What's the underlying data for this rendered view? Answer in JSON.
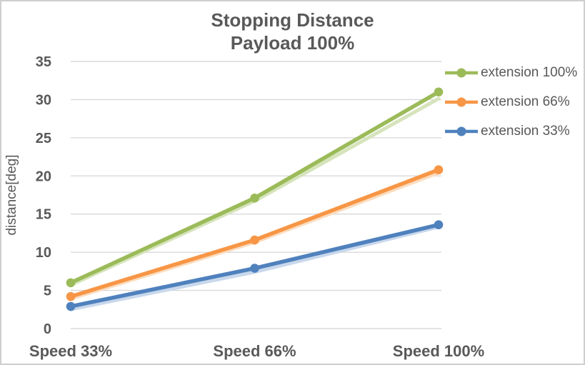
{
  "chart_data": {
    "type": "line",
    "title": "Stopping Distance",
    "subtitle": "Payload 100%",
    "categories": [
      "Speed 33%",
      "Speed 66%",
      "Speed 100%"
    ],
    "series": [
      {
        "name": "extension 100%",
        "values": [
          6.0,
          17.1,
          31.0
        ],
        "second_run_values": [
          5.9,
          16.9,
          30.3
        ],
        "color": "#9BBB59",
        "light_color": "#D6E4BC"
      },
      {
        "name": "extension 66%",
        "values": [
          4.2,
          11.6,
          20.8
        ],
        "second_run_values": [
          4.1,
          11.5,
          20.6
        ],
        "color": "#F79646",
        "light_color": "#FBDDBF"
      },
      {
        "name": "extension 33%",
        "values": [
          2.9,
          7.9,
          13.6
        ],
        "second_run_values": [
          2.7,
          7.6,
          13.5
        ],
        "color": "#4F81BD",
        "light_color": "#C9D8EC"
      }
    ],
    "xlabel": "",
    "ylabel": "distance[deg]",
    "ylim": [
      0,
      35
    ],
    "ytick_step": 5,
    "grid": true,
    "legend_position": "right",
    "marker": "circle",
    "colors": {
      "text": "#595959",
      "grid": "#D9D9D9",
      "frame_border": "#D0CECE",
      "background": "#FFFFFF"
    }
  }
}
